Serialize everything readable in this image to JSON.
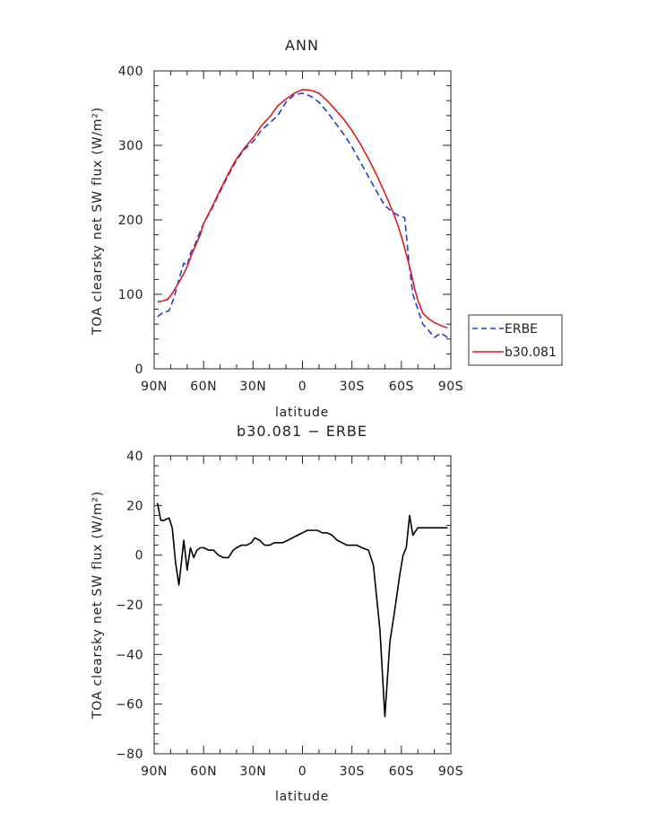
{
  "chart_data": [
    {
      "type": "line",
      "title": "ANN",
      "xlabel": "latitude",
      "ylabel": "TOA clearsky net SW flux (W/m²)",
      "xlim": [
        90,
        -90
      ],
      "ylim": [
        0,
        400
      ],
      "x_tick_values": [
        90,
        60,
        30,
        0,
        -30,
        -60,
        -90
      ],
      "x_tick_labels": [
        "90N",
        "60N",
        "30N",
        "0",
        "30S",
        "60S",
        "90S"
      ],
      "y_ticks": [
        0,
        100,
        200,
        300,
        400
      ],
      "legend_position": "right",
      "grid": false,
      "series": [
        {
          "name": "ERBE",
          "color": "#1f3fd9",
          "style": "dashed",
          "x": [
            88,
            85,
            81,
            78,
            75,
            72,
            70,
            68,
            65,
            62,
            60,
            55,
            50,
            45,
            40,
            35,
            30,
            25,
            20,
            15,
            10,
            5,
            0,
            -5,
            -10,
            -15,
            -20,
            -25,
            -30,
            -35,
            -40,
            -45,
            -50,
            -55,
            -58,
            -62,
            -65,
            -67,
            -70,
            -73,
            -76,
            -80,
            -84,
            -88
          ],
          "values": [
            70,
            75,
            78,
            95,
            120,
            142,
            138,
            155,
            168,
            185,
            195,
            215,
            238,
            260,
            280,
            295,
            305,
            320,
            330,
            340,
            358,
            368,
            370,
            366,
            358,
            345,
            330,
            315,
            298,
            278,
            258,
            238,
            219,
            210,
            206,
            203,
            135,
            100,
            80,
            60,
            53,
            42,
            48,
            42
          ]
        },
        {
          "name": "b30.081",
          "color": "#e01b1b",
          "style": "solid",
          "x": [
            88,
            85,
            82,
            80,
            78,
            75,
            72,
            70,
            67,
            65,
            62,
            60,
            55,
            50,
            45,
            40,
            35,
            30,
            25,
            20,
            15,
            10,
            5,
            0,
            -5,
            -10,
            -15,
            -20,
            -25,
            -30,
            -35,
            -40,
            -45,
            -50,
            -55,
            -58,
            -60,
            -62,
            -64,
            -66,
            -68,
            -70,
            -73,
            -76,
            -80,
            -84,
            -88
          ],
          "values": [
            90,
            91,
            93,
            98,
            105,
            116,
            128,
            137,
            155,
            165,
            180,
            195,
            217,
            240,
            262,
            282,
            297,
            310,
            326,
            338,
            353,
            362,
            370,
            375,
            374,
            370,
            360,
            348,
            335,
            320,
            302,
            282,
            260,
            236,
            210,
            192,
            178,
            162,
            145,
            128,
            108,
            92,
            75,
            68,
            62,
            58,
            55
          ]
        }
      ]
    },
    {
      "type": "line",
      "title": "b30.081 − ERBE",
      "xlabel": "latitude",
      "ylabel": "TOA clearsky net SW flux (W/m²)",
      "xlim": [
        90,
        -90
      ],
      "ylim": [
        -80,
        40
      ],
      "x_tick_values": [
        90,
        60,
        30,
        0,
        -30,
        -60,
        -90
      ],
      "x_tick_labels": [
        "90N",
        "60N",
        "30N",
        "0",
        "30S",
        "60S",
        "90S"
      ],
      "y_ticks": [
        -80,
        -60,
        -40,
        -20,
        0,
        20,
        40
      ],
      "grid": false,
      "series": [
        {
          "color": "#000000",
          "style": "solid",
          "x": [
            88,
            86,
            84,
            81,
            79,
            77,
            75,
            72,
            70,
            68,
            66,
            64,
            62,
            60,
            57,
            54,
            51,
            48,
            45,
            42,
            40,
            37,
            34,
            31,
            29,
            26,
            23,
            20,
            17,
            14,
            12,
            9,
            6,
            3,
            0,
            -3,
            -6,
            -9,
            -12,
            -15,
            -18,
            -21,
            -24,
            -27,
            -30,
            -33,
            -36,
            -40,
            -43,
            -47,
            -50,
            -53,
            -56,
            -59,
            -61,
            -63,
            -65,
            -67,
            -70,
            -73,
            -76,
            -79,
            -82,
            -85,
            -88
          ],
          "values": [
            21,
            14,
            14,
            15,
            11,
            -3,
            -12,
            6,
            -6,
            3,
            -1,
            2,
            3,
            3,
            2,
            2,
            0,
            -1,
            -1,
            2,
            3,
            4,
            4,
            5,
            7,
            6,
            4,
            4,
            5,
            5,
            5,
            6,
            7,
            8,
            9,
            10,
            10,
            10,
            9,
            9,
            8,
            6,
            5,
            4,
            4,
            4,
            3,
            2,
            -4,
            -30,
            -65,
            -35,
            -22,
            -8,
            0,
            3,
            16,
            8,
            11,
            11,
            11,
            11,
            11,
            11,
            11
          ]
        }
      ]
    }
  ]
}
